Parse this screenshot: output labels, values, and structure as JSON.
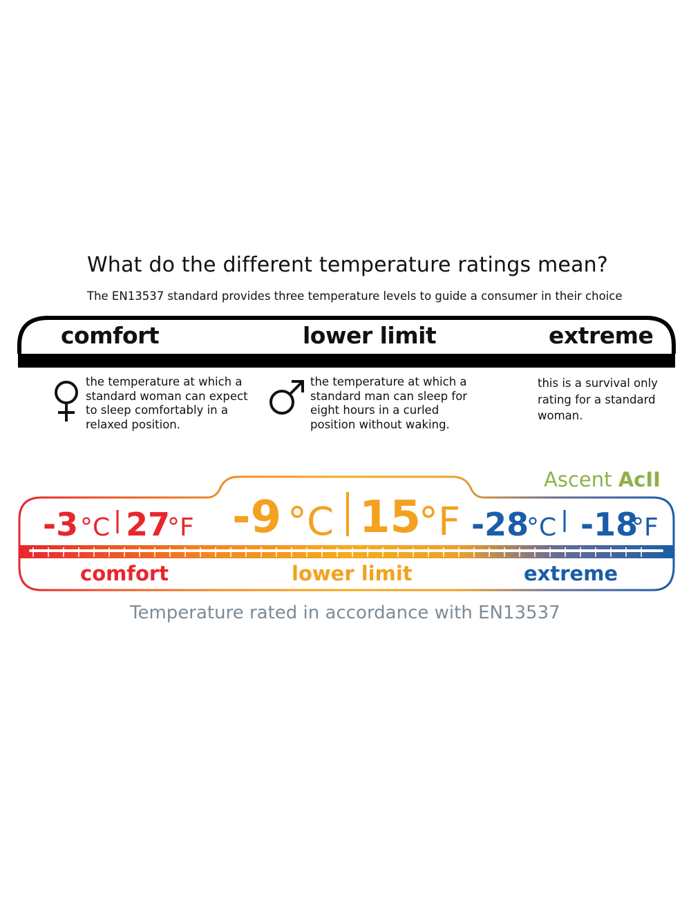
{
  "title": "What do the different temperature ratings mean?",
  "subtitle": "The EN13537 standard provides three temperature levels to guide a consumer in their choice",
  "levels": [
    {
      "name": "comfort",
      "icon": "female-symbol-icon",
      "description": [
        "the temperature at which a",
        "standard woman can expect",
        "to sleep comfortably in a",
        "relaxed position."
      ]
    },
    {
      "name": "lower limit",
      "icon": "male-symbol-icon",
      "description": [
        "the temperature at which a",
        "standard man can sleep for",
        "eight hours in a curled",
        "position without waking."
      ]
    },
    {
      "name": "extreme",
      "description": [
        "this is a survival only",
        "rating for a standard",
        "woman."
      ]
    }
  ],
  "product": {
    "brand": "Ascent",
    "model": "AcII"
  },
  "ratings": {
    "comfort": {
      "c": "-3",
      "f": "27",
      "label": "comfort"
    },
    "lower_limit": {
      "c": "-9",
      "f": "15",
      "label": "lower limit"
    },
    "extreme": {
      "c": "-28",
      "f": "-18",
      "label": "extreme"
    },
    "unit_c": "°C",
    "unit_f": "°F"
  },
  "colors": {
    "comfort": "#e8262d",
    "lower_limit": "#f3a11f",
    "extreme": "#1a5da8",
    "brand": "#8fb04a",
    "footer": "#7d8b96"
  },
  "footer": "Temperature rated in accordance with EN13537"
}
